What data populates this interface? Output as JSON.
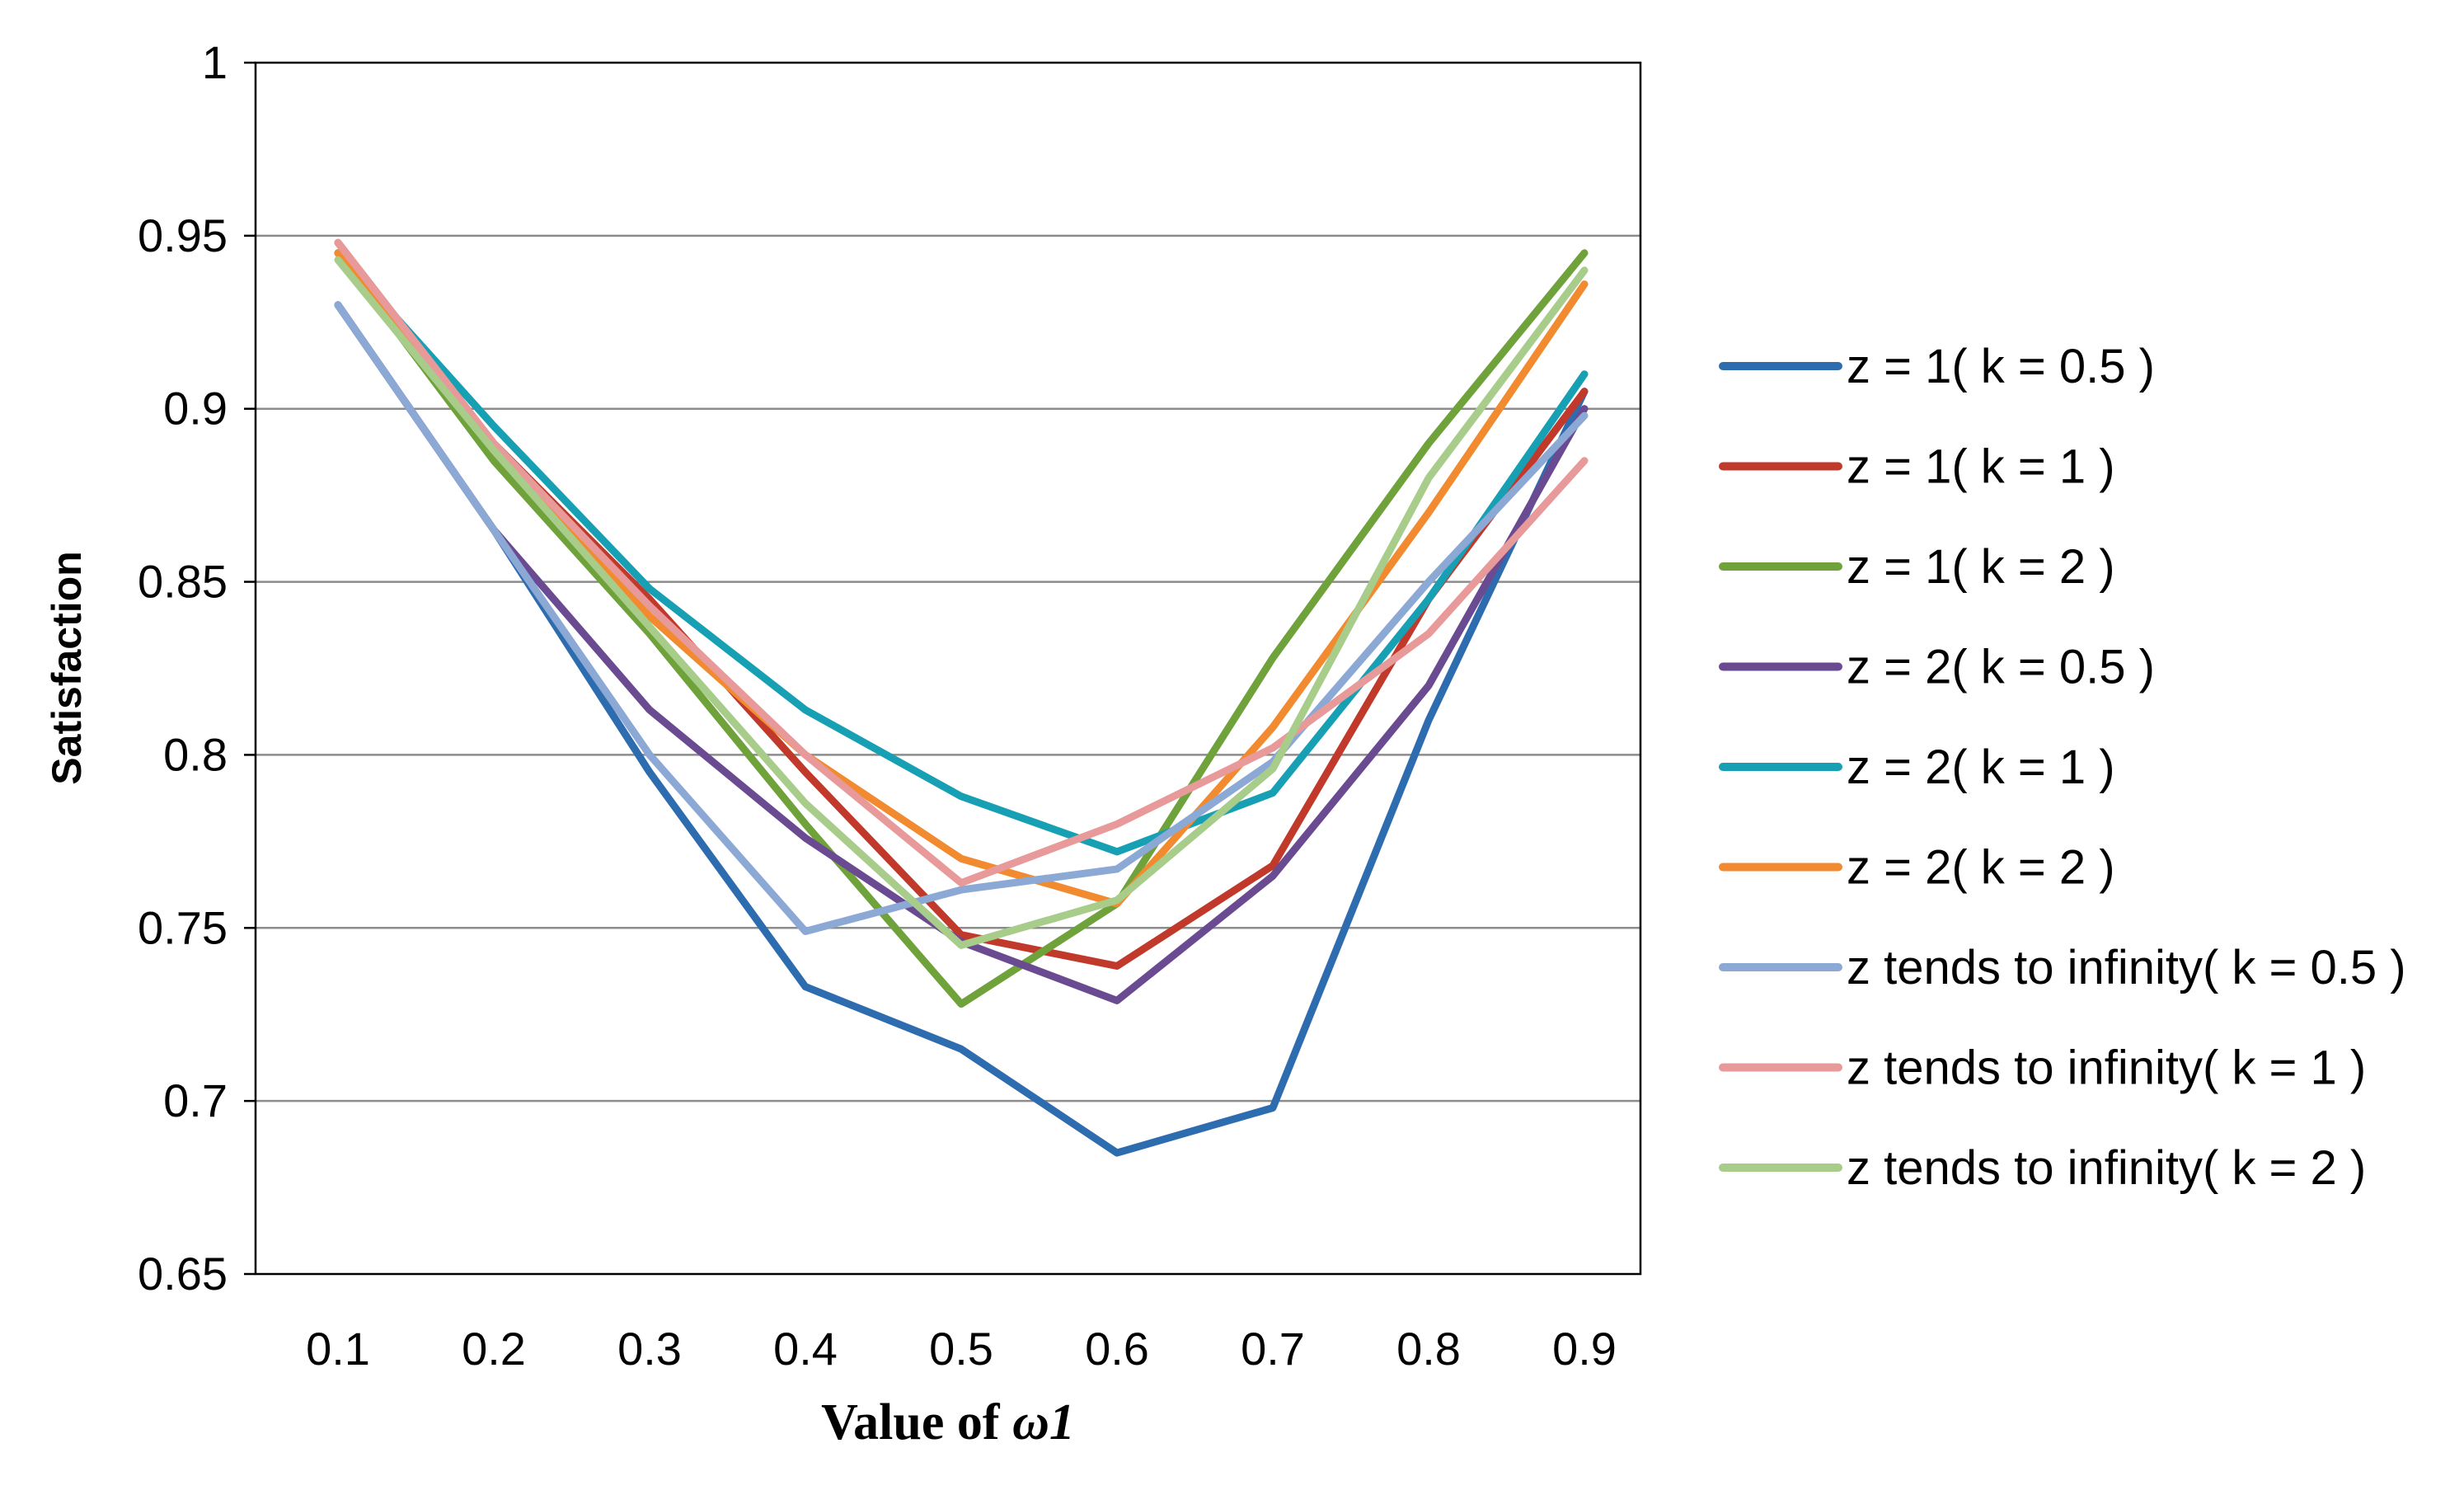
{
  "chart_data": {
    "type": "line",
    "title": "",
    "xlabel_prefix": "Value of ",
    "xlabel_symbol": "ω1",
    "ylabel": "Satisfaction",
    "x": [
      0.1,
      0.2,
      0.3,
      0.4,
      0.5,
      0.6,
      0.7,
      0.8,
      0.9
    ],
    "x_tick_labels": [
      "0.1",
      "0.2",
      "0.3",
      "0.4",
      "0.5",
      "0.6",
      "0.7",
      "0.8",
      "0.9"
    ],
    "y_tick_values": [
      0.65,
      0.7,
      0.75,
      0.8,
      0.85,
      0.9,
      0.95,
      1
    ],
    "y_tick_labels": [
      "0.65",
      "0.7",
      "0.75",
      "0.8",
      "0.85",
      "0.9",
      "0.95",
      "1"
    ],
    "ylim": [
      0.65,
      1
    ],
    "grid": true,
    "legend_position": "right",
    "series": [
      {
        "name": "z = 1( k = 0.5 )",
        "color": "#2E6CB0",
        "values": [
          0.93,
          0.865,
          0.795,
          0.733,
          0.715,
          0.685,
          0.698,
          0.81,
          0.905
        ]
      },
      {
        "name": "z = 1( k = 1 )",
        "color": "#C0392B",
        "values": [
          0.948,
          0.89,
          0.845,
          0.795,
          0.748,
          0.739,
          0.768,
          0.845,
          0.905
        ]
      },
      {
        "name": "z = 1( k = 2 )",
        "color": "#6FA23A",
        "values": [
          0.945,
          0.885,
          0.835,
          0.78,
          0.728,
          0.757,
          0.828,
          0.89,
          0.945
        ]
      },
      {
        "name": "z = 2( k = 0.5 )",
        "color": "#6A4A91",
        "values": [
          0.93,
          0.865,
          0.813,
          0.776,
          0.746,
          0.729,
          0.765,
          0.82,
          0.9
        ]
      },
      {
        "name": "z = 2( k = 1 )",
        "color": "#17A0B4",
        "values": [
          0.945,
          0.895,
          0.848,
          0.813,
          0.788,
          0.772,
          0.789,
          0.845,
          0.91
        ]
      },
      {
        "name": "z = 2( k = 2 )",
        "color": "#F28A30",
        "values": [
          0.945,
          0.89,
          0.84,
          0.8,
          0.77,
          0.757,
          0.808,
          0.87,
          0.936
        ]
      },
      {
        "name": "z tends to infinity( k = 0.5 )",
        "color": "#8CA8D4",
        "values": [
          0.93,
          0.865,
          0.8,
          0.749,
          0.761,
          0.767,
          0.798,
          0.85,
          0.898
        ]
      },
      {
        "name": "z tends to infinity( k = 1 )",
        "color": "#E8999A",
        "values": [
          0.948,
          0.89,
          0.843,
          0.8,
          0.763,
          0.78,
          0.802,
          0.835,
          0.885
        ]
      },
      {
        "name": "z tends to infinity( k = 2 )",
        "color": "#A8CC8A",
        "values": [
          0.943,
          0.888,
          0.837,
          0.786,
          0.745,
          0.758,
          0.796,
          0.88,
          0.94
        ]
      }
    ]
  }
}
